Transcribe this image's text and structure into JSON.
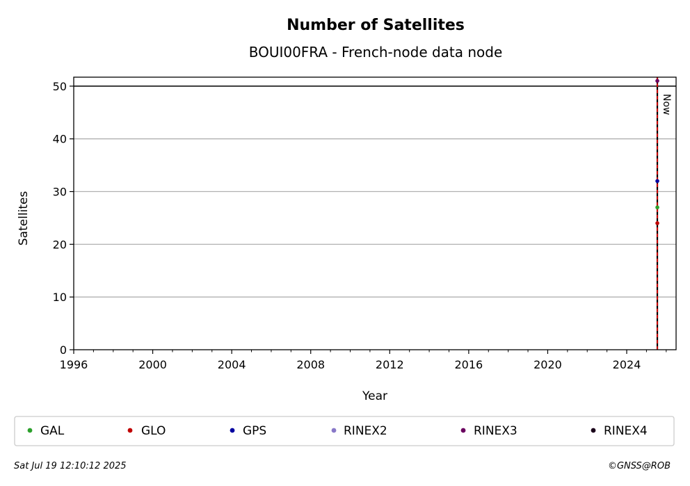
{
  "chart_data": {
    "type": "scatter",
    "title": "Number of Satellites",
    "subtitle": "BOUI00FRA - French-node data node",
    "xlabel": "Year",
    "ylabel": "Satellites",
    "xlim": [
      1996,
      2026.5
    ],
    "ylim": [
      0,
      51.7
    ],
    "x_ticks": [
      1996,
      2000,
      2004,
      2008,
      2012,
      2016,
      2020,
      2024
    ],
    "x_tick_labels": [
      "1996",
      "2000",
      "2004",
      "2008",
      "2012",
      "2016",
      "2020",
      "2024"
    ],
    "y_ticks": [
      0,
      10,
      20,
      30,
      40,
      50
    ],
    "y_tick_labels": [
      "0",
      "10",
      "20",
      "30",
      "40",
      "50"
    ],
    "grid": "horizontal",
    "reference_lines": [
      {
        "orientation": "horizontal",
        "y": 50,
        "color": "#000000",
        "style": "solid"
      },
      {
        "orientation": "vertical",
        "x": 2025.55,
        "color": "#000000",
        "style": "solid",
        "label": "Now"
      },
      {
        "orientation": "vertical",
        "x": 2025.55,
        "color": "#dd0000",
        "style": "dashed"
      }
    ],
    "legend_position": "bottom",
    "series": [
      {
        "name": "GAL",
        "color": "#2ca02c",
        "points": [
          {
            "x": 2025.55,
            "y": 27
          }
        ]
      },
      {
        "name": "GLO",
        "color": "#c00000",
        "points": [
          {
            "x": 2025.55,
            "y": 24
          }
        ]
      },
      {
        "name": "GPS",
        "color": "#0000a0",
        "points": [
          {
            "x": 2025.55,
            "y": 32
          }
        ]
      },
      {
        "name": "RINEX2",
        "color": "#8878c8",
        "points": []
      },
      {
        "name": "RINEX3",
        "color": "#6a005f",
        "points": [
          {
            "x": 2025.55,
            "y": 51
          }
        ]
      },
      {
        "name": "RINEX4",
        "color": "#1a001a",
        "points": []
      }
    ]
  },
  "footer": {
    "timestamp": "Sat Jul 19 12:10:12 2025",
    "credit": "©GNSS@ROB"
  }
}
